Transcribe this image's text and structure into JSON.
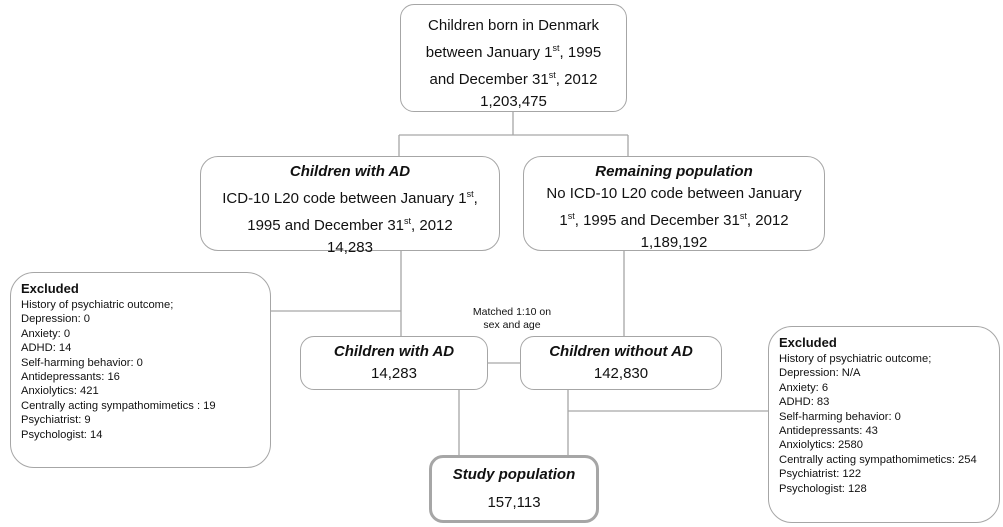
{
  "root": {
    "line1": "Children born in Denmark",
    "line2_a": "between January 1",
    "line2_sup": "st",
    "line2_b": ", 1995",
    "line3_a": "and December 31",
    "line3_sup": "st",
    "line3_b": ", 2012",
    "count": "1,203,475"
  },
  "ad": {
    "title": "Children with AD",
    "line1_a": "ICD-10 L20 code between January 1",
    "line1_sup": "st",
    "line1_b": ",",
    "line2_a": "1995 and December 31",
    "line2_sup": "st",
    "line2_b": ", 2012",
    "count": "14,283"
  },
  "remaining": {
    "title": "Remaining population",
    "line1": "No ICD-10 L20 code between January",
    "line2_a": "1",
    "line2_sup": "st",
    "line2_b": ", 1995 and December 31",
    "line2_sup2": "st",
    "line2_c": ", 2012",
    "count": "1,189,192"
  },
  "matched_note": {
    "line1": "Matched 1:10 on",
    "line2": "sex and age"
  },
  "ad_matched": {
    "title": "Children with AD",
    "count": "14,283"
  },
  "no_ad": {
    "title": "Children without AD",
    "count": "142,830"
  },
  "study": {
    "title": "Study population",
    "count": "157,113"
  },
  "excluded_left": {
    "title": "Excluded",
    "items": [
      "History of psychiatric outcome;",
      "Depression: 0",
      "Anxiety: 0",
      "ADHD: 14",
      "Self-harming behavior: 0",
      "Antidepressants: 16",
      "Anxiolytics: 421",
      "Centrally acting sympathomimetics : 19",
      "Psychiatrist: 9",
      "Psychologist: 14"
    ]
  },
  "excluded_right": {
    "title": "Excluded",
    "items": [
      "History of psychiatric outcome;",
      "Depression: N/A",
      "Anxiety: 6",
      "ADHD: 83",
      "Self-harming behavior: 0",
      "Antidepressants: 43",
      "Anxiolytics: 2580",
      "Centrally acting sympathomimetics: 254",
      "Psychiatrist: 122",
      "Psychologist: 128"
    ]
  },
  "colors": {
    "border": "#a6a6a6",
    "text": "#111111"
  }
}
